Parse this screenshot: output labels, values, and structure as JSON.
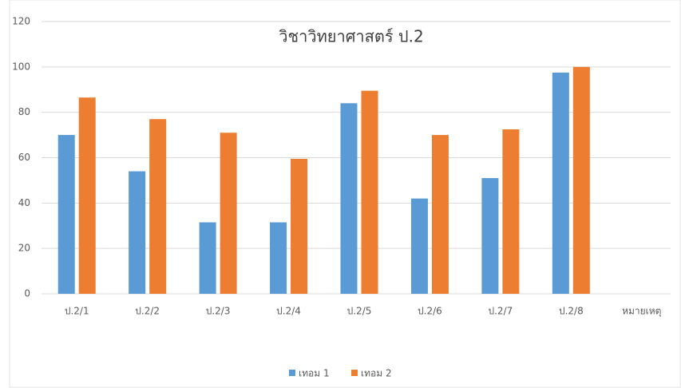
{
  "chart_data": {
    "type": "bar",
    "title": "วิชาวิทยาศาสตร์ ป.2",
    "categories": [
      "ป.2/1",
      "ป.2/2",
      "ป.2/3",
      "ป.2/4",
      "ป.2/5",
      "ป.2/6",
      "ป.2/7",
      "ป.2/8",
      "หมายเหตุ"
    ],
    "series": [
      {
        "name": "เทอม 1",
        "color": "#5b9bd5",
        "values": [
          70,
          54,
          31.5,
          31.5,
          84,
          42,
          51,
          97.5,
          null
        ]
      },
      {
        "name": "เทอม 2",
        "color": "#ed7d31",
        "values": [
          86.5,
          77,
          71,
          59.5,
          89.5,
          70,
          72.5,
          100,
          null
        ]
      }
    ],
    "ylim": [
      0,
      120
    ],
    "yticks": [
      0,
      20,
      40,
      60,
      80,
      100,
      120
    ],
    "grid": true,
    "legend": "bottom"
  }
}
